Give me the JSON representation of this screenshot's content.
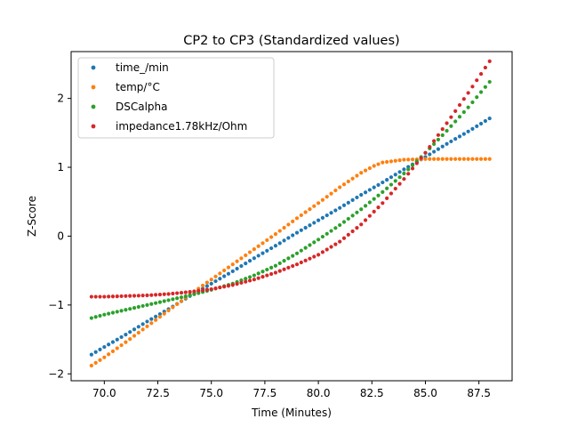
{
  "chart_data": {
    "type": "scatter",
    "title": "CP2 to CP3 (Standardized values)",
    "xlabel": "Time (Minutes)",
    "ylabel": "Z-Score",
    "xlim": [
      68.45,
      89.05
    ],
    "ylim": [
      -2.1,
      2.68
    ],
    "xticks": [
      70.0,
      72.5,
      75.0,
      77.5,
      80.0,
      82.5,
      85.0,
      87.5
    ],
    "xtick_labels": [
      "70.0",
      "72.5",
      "75.0",
      "77.5",
      "80.0",
      "82.5",
      "85.0",
      "87.5"
    ],
    "yticks": [
      -2,
      -1,
      0,
      1,
      2
    ],
    "ytick_labels": [
      "−2",
      "−1",
      "0",
      "1",
      "2"
    ],
    "grid": false,
    "legend_position": "top-left",
    "x": [
      69.4,
      69.6,
      69.8,
      70.0,
      70.2,
      70.4,
      70.6,
      70.8,
      71.0,
      71.2,
      71.4,
      71.6,
      71.8,
      72.0,
      72.2,
      72.4,
      72.6,
      72.8,
      73.0,
      73.2,
      73.4,
      73.6,
      73.8,
      74.0,
      74.2,
      74.4,
      74.6,
      74.8,
      75.0,
      75.2,
      75.4,
      75.6,
      75.8,
      76.0,
      76.2,
      76.4,
      76.6,
      76.8,
      77.0,
      77.2,
      77.4,
      77.6,
      77.8,
      78.0,
      78.2,
      78.4,
      78.6,
      78.8,
      79.0,
      79.2,
      79.4,
      79.6,
      79.8,
      80.0,
      80.2,
      80.4,
      80.6,
      80.8,
      81.0,
      81.2,
      81.4,
      81.6,
      81.8,
      82.0,
      82.2,
      82.4,
      82.6,
      82.8,
      83.0,
      83.2,
      83.4,
      83.6,
      83.8,
      84.0,
      84.2,
      84.4,
      84.6,
      84.8,
      85.0,
      85.2,
      85.4,
      85.6,
      85.8,
      86.0,
      86.2,
      86.4,
      86.6,
      86.8,
      87.0,
      87.2,
      87.4,
      87.6,
      87.8,
      88.0
    ],
    "series": [
      {
        "name": "time_/min",
        "color": "#1f77b4",
        "curve": "linear",
        "y_first": -1.72,
        "y_last": 1.71
      },
      {
        "name": "temp/°C",
        "color": "#ff7f0e",
        "curve": "logistic",
        "y_first": -1.88,
        "y_last": 1.12
      },
      {
        "name": "DSCalpha",
        "color": "#2ca02c",
        "curve": "cubic",
        "y_first": -1.19,
        "y_last": 2.24
      },
      {
        "name": "impedance1.78kHz/Ohm",
        "color": "#d62728",
        "curve": "flat-then-steep",
        "y_first": -0.88,
        "y_last": 2.54
      }
    ],
    "series_points": [
      [
        [
          69.4,
          -1.72
        ],
        [
          70.0,
          -1.61
        ],
        [
          71.0,
          -1.43
        ],
        [
          72.0,
          -1.24
        ],
        [
          73.0,
          -1.06
        ],
        [
          74.0,
          -0.87
        ],
        [
          75.0,
          -0.69
        ],
        [
          76.0,
          -0.51
        ],
        [
          77.0,
          -0.32
        ],
        [
          78.0,
          -0.14
        ],
        [
          79.0,
          0.05
        ],
        [
          80.0,
          0.23
        ],
        [
          81.0,
          0.41
        ],
        [
          82.0,
          0.6
        ],
        [
          83.0,
          0.78
        ],
        [
          84.0,
          0.97
        ],
        [
          85.0,
          1.15
        ],
        [
          86.0,
          1.34
        ],
        [
          87.0,
          1.52
        ],
        [
          88.0,
          1.71
        ]
      ],
      [
        [
          69.4,
          -1.88
        ],
        [
          70.0,
          -1.76
        ],
        [
          71.0,
          -1.54
        ],
        [
          72.0,
          -1.31
        ],
        [
          73.0,
          -1.08
        ],
        [
          74.0,
          -0.85
        ],
        [
          75.0,
          -0.63
        ],
        [
          76.0,
          -0.41
        ],
        [
          77.0,
          -0.19
        ],
        [
          78.0,
          0.03
        ],
        [
          79.0,
          0.26
        ],
        [
          80.0,
          0.48
        ],
        [
          81.0,
          0.71
        ],
        [
          82.0,
          0.92
        ],
        [
          82.6,
          1.02
        ],
        [
          83.0,
          1.07
        ],
        [
          84.0,
          1.11
        ],
        [
          85.0,
          1.12
        ],
        [
          86.0,
          1.12
        ],
        [
          87.0,
          1.12
        ],
        [
          88.0,
          1.12
        ]
      ],
      [
        [
          69.4,
          -1.19
        ],
        [
          70.0,
          -1.14
        ],
        [
          71.0,
          -1.07
        ],
        [
          72.0,
          -1.0
        ],
        [
          73.0,
          -0.93
        ],
        [
          74.0,
          -0.86
        ],
        [
          75.0,
          -0.78
        ],
        [
          76.0,
          -0.69
        ],
        [
          77.0,
          -0.57
        ],
        [
          78.0,
          -0.43
        ],
        [
          79.0,
          -0.25
        ],
        [
          80.0,
          -0.05
        ],
        [
          81.0,
          0.16
        ],
        [
          82.0,
          0.39
        ],
        [
          83.0,
          0.64
        ],
        [
          84.0,
          0.91
        ],
        [
          85.0,
          1.21
        ],
        [
          86.0,
          1.53
        ],
        [
          87.0,
          1.87
        ],
        [
          88.0,
          2.24
        ]
      ],
      [
        [
          69.4,
          -0.88
        ],
        [
          70.0,
          -0.88
        ],
        [
          71.0,
          -0.87
        ],
        [
          72.0,
          -0.86
        ],
        [
          73.0,
          -0.84
        ],
        [
          74.0,
          -0.81
        ],
        [
          75.0,
          -0.77
        ],
        [
          76.0,
          -0.71
        ],
        [
          77.0,
          -0.63
        ],
        [
          78.0,
          -0.53
        ],
        [
          79.0,
          -0.41
        ],
        [
          80.0,
          -0.27
        ],
        [
          81.0,
          -0.08
        ],
        [
          82.0,
          0.17
        ],
        [
          83.0,
          0.48
        ],
        [
          84.0,
          0.83
        ],
        [
          85.0,
          1.21
        ],
        [
          86.0,
          1.64
        ],
        [
          87.0,
          2.08
        ],
        [
          88.0,
          2.54
        ]
      ]
    ]
  }
}
